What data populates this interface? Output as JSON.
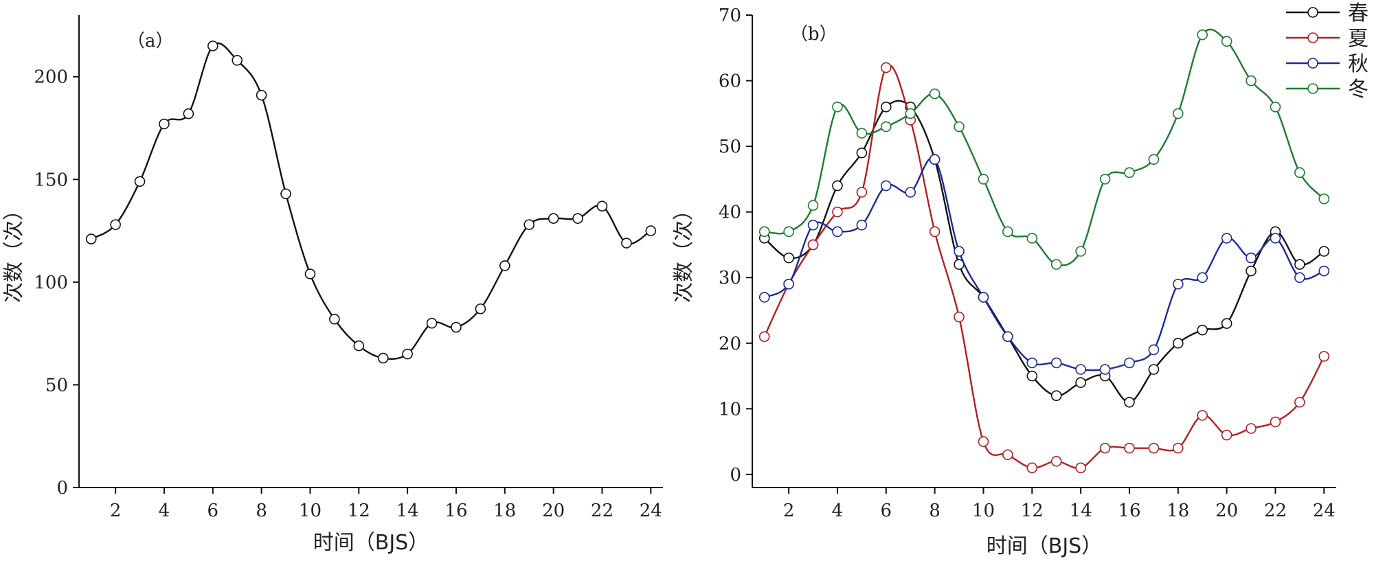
{
  "chart_data": [
    {
      "type": "line",
      "panel_label": "（a）",
      "xlabel": "时间（BJS）",
      "ylabel": "次数（次）",
      "xlim": [
        0.5,
        24.5
      ],
      "ylim": [
        0,
        230
      ],
      "xticks": [
        2,
        4,
        6,
        8,
        10,
        12,
        14,
        16,
        18,
        20,
        22,
        24
      ],
      "yticks": [
        0,
        50,
        100,
        150,
        200
      ],
      "grid": false,
      "x": [
        1,
        2,
        3,
        4,
        5,
        6,
        7,
        8,
        9,
        10,
        11,
        12,
        13,
        14,
        15,
        16,
        17,
        18,
        19,
        20,
        21,
        22,
        23,
        24
      ],
      "series": [
        {
          "color": "#111111",
          "values": [
            121,
            128,
            149,
            177,
            182,
            215,
            208,
            191,
            143,
            104,
            82,
            69,
            63,
            65,
            80,
            78,
            87,
            108,
            128,
            131,
            131,
            137,
            119,
            125
          ]
        }
      ]
    },
    {
      "type": "line",
      "panel_label": "（b）",
      "xlabel": "时间（BJS）",
      "ylabel": "次数（次）",
      "xlim": [
        0.5,
        24.5
      ],
      "ylim": [
        -2,
        70
      ],
      "xticks": [
        2,
        4,
        6,
        8,
        10,
        12,
        14,
        16,
        18,
        20,
        22,
        24
      ],
      "yticks": [
        0,
        10,
        20,
        30,
        40,
        50,
        60,
        70
      ],
      "grid": false,
      "legend": "top-right",
      "x": [
        1,
        2,
        3,
        4,
        5,
        6,
        7,
        8,
        9,
        10,
        11,
        12,
        13,
        14,
        15,
        16,
        17,
        18,
        19,
        20,
        21,
        22,
        23,
        24
      ],
      "series": [
        {
          "name": "春",
          "color": "#111111",
          "values": [
            36,
            33,
            35,
            44,
            49,
            56,
            56,
            48,
            32,
            27,
            21,
            15,
            12,
            14,
            15,
            11,
            16,
            20,
            22,
            23,
            31,
            37,
            32,
            34
          ]
        },
        {
          "name": "夏",
          "color": "#b02020",
          "values": [
            21,
            29,
            35,
            40,
            43,
            62,
            54,
            37,
            24,
            5,
            3,
            1,
            2,
            1,
            4,
            4,
            4,
            4,
            9,
            6,
            7,
            8,
            11,
            18
          ]
        },
        {
          "name": "秋",
          "color": "#1a2a9a",
          "values": [
            27,
            29,
            38,
            37,
            38,
            44,
            43,
            48,
            34,
            27,
            21,
            17,
            17,
            16,
            16,
            17,
            19,
            29,
            30,
            36,
            33,
            36,
            30,
            31
          ]
        },
        {
          "name": "冬",
          "color": "#1e7a30",
          "values": [
            37,
            37,
            41,
            56,
            52,
            53,
            55,
            58,
            53,
            45,
            37,
            36,
            32,
            34,
            45,
            46,
            48,
            55,
            67,
            66,
            60,
            56,
            46,
            42
          ]
        }
      ]
    }
  ]
}
